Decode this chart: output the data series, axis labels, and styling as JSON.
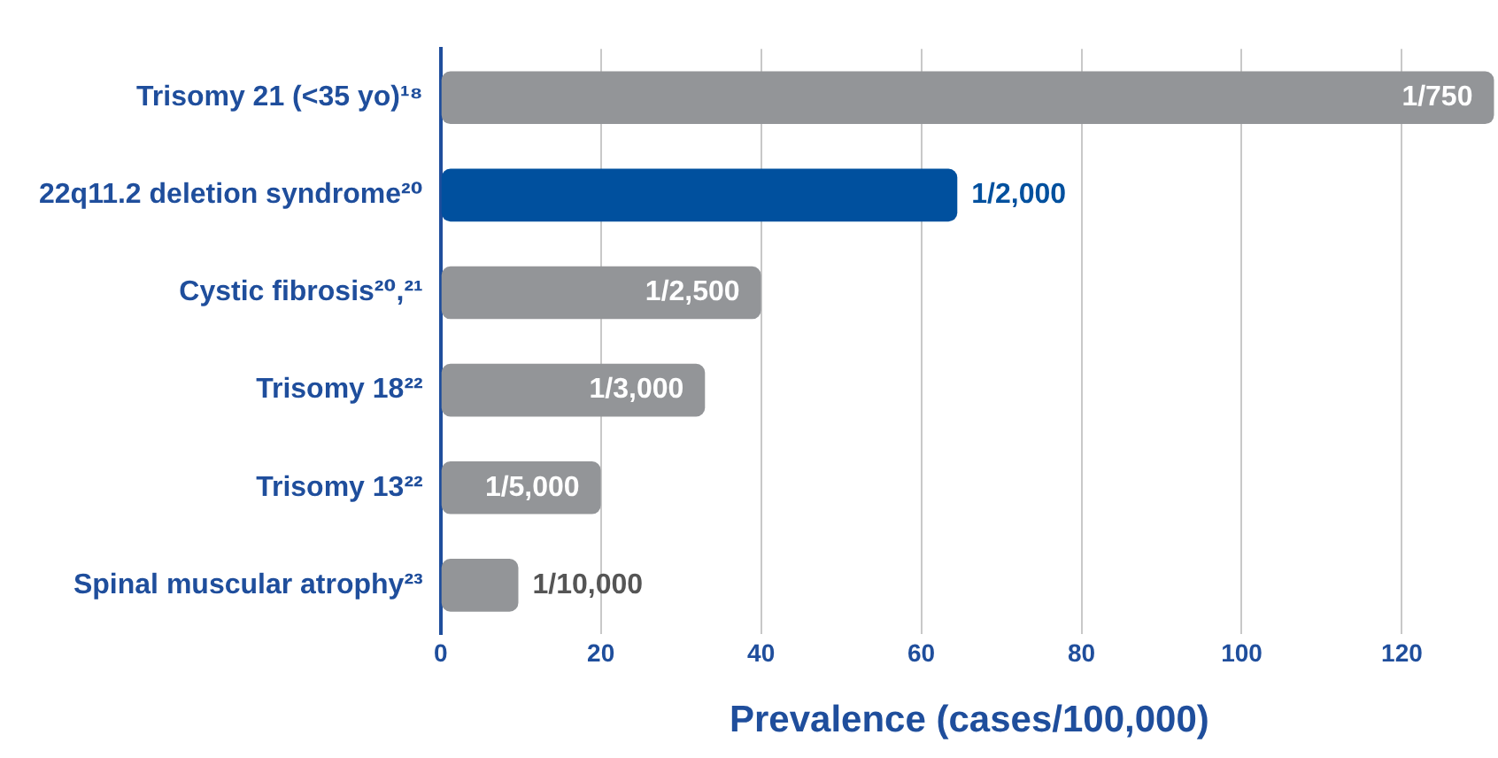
{
  "chart_data": {
    "type": "bar",
    "orientation": "horizontal",
    "xlabel": "Prevalence (cases/100,000)",
    "categories": [
      "Trisomy 21 (<35 yo)¹⁸",
      "22q11.2 deletion syndrome²⁰",
      "Cystic fibrosis²⁰,²¹",
      "Trisomy 18²²",
      "Trisomy 13²²",
      "Spinal muscular atrophy²³"
    ],
    "values": [
      131.5,
      64.5,
      40,
      33,
      20,
      9.7
    ],
    "colors": [
      "#939598",
      "#00509e",
      "#939598",
      "#939598",
      "#939598",
      "#939598"
    ],
    "value_labels": [
      "1/750",
      "1/2,000",
      "1/2,500",
      "1/3,000",
      "1/5,000",
      "1/10,000"
    ],
    "xlim": [
      0,
      132
    ],
    "xticks": [
      0,
      20,
      40,
      60,
      80,
      100,
      120
    ],
    "grid": "x",
    "legend": false
  }
}
